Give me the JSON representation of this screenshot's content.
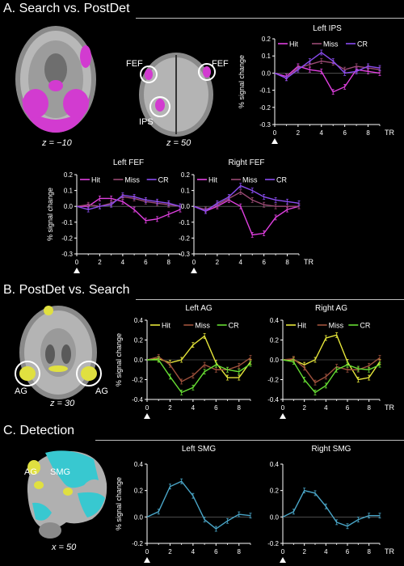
{
  "sections": {
    "A": {
      "title": "A. Search vs. PostDet"
    },
    "B": {
      "title": "B. PostDet vs. Search"
    },
    "C": {
      "title": "C. Detection"
    }
  },
  "brain_labels": {
    "a1_z": "z = −10",
    "a2_z": "z = 50",
    "a2_fef_left": "FEF",
    "a2_fef_right": "FEF",
    "a2_ips": "IPS",
    "b_z": "z = 30",
    "b_ag_left": "AG",
    "b_ag_right": "AG",
    "c_x": "x = 50",
    "c_ag": "AG",
    "c_smg": "SMG"
  },
  "colors": {
    "hit_a": "#e040e0",
    "miss_a": "#9a4a74",
    "cr_a": "#8a4cf0",
    "hit_b": "#e6e63a",
    "miss_b": "#a0523d",
    "cr_b": "#66dd33",
    "det": "#4aa6c8",
    "brain_pink": "#d23bd0",
    "brain_yellow": "#e0e040",
    "brain_cyan": "#38c8d0"
  },
  "chart_data": [
    {
      "id": "left_ips",
      "type": "line",
      "title": "Left IPS",
      "ylabel": "% signal change",
      "xlabel": "TR",
      "onset": "Stimulus onset",
      "x": [
        0,
        1,
        2,
        3,
        4,
        5,
        6,
        7,
        8,
        9
      ],
      "ylim": [
        -0.3,
        0.2
      ],
      "yticks": [
        -0.3,
        -0.2,
        -0.1,
        0,
        0.1,
        0.2
      ],
      "ytick_labels": [
        "-0.3",
        "-0.2",
        "-0.1",
        "0.0",
        "0.1",
        "0.2"
      ],
      "xticks": [
        0,
        2,
        4,
        6,
        8
      ],
      "xtick_labels": [
        "0",
        "2",
        "4",
        "6",
        "8"
      ],
      "series": [
        {
          "name": "Hit",
          "color": "#e040e0",
          "values": [
            0,
            -0.02,
            0.04,
            0.02,
            0.01,
            -0.11,
            -0.08,
            0.02,
            0.01,
            0.0
          ]
        },
        {
          "name": "Miss",
          "color": "#9a4a74",
          "values": [
            0,
            -0.03,
            0.03,
            0.05,
            0.07,
            0.06,
            0.02,
            0.04,
            0.03,
            0.02
          ]
        },
        {
          "name": "CR",
          "color": "#8a4cf0",
          "values": [
            0,
            -0.03,
            0.02,
            0.07,
            0.12,
            0.07,
            0.0,
            0.01,
            0.04,
            0.03
          ]
        }
      ]
    },
    {
      "id": "left_fef",
      "type": "line",
      "title": "Left FEF",
      "ylabel": "% signal change",
      "xlabel": "",
      "onset": "Stimulus onset",
      "x": [
        0,
        1,
        2,
        3,
        4,
        5,
        6,
        7,
        8,
        9
      ],
      "ylim": [
        -0.3,
        0.2
      ],
      "yticks": [
        -0.3,
        -0.2,
        -0.1,
        0,
        0.1,
        0.2
      ],
      "ytick_labels": [
        "-0.3",
        "-0.2",
        "-0.1",
        "0.0",
        "0.1",
        "0.2"
      ],
      "xticks": [
        0,
        2,
        4,
        6,
        8
      ],
      "xtick_labels": [
        "0",
        "2",
        "4",
        "6",
        "8"
      ],
      "series": [
        {
          "name": "Hit",
          "color": "#e040e0",
          "values": [
            0,
            0.0,
            0.05,
            0.05,
            0.03,
            -0.02,
            -0.09,
            -0.08,
            -0.05,
            -0.02
          ]
        },
        {
          "name": "Miss",
          "color": "#9a4a74",
          "values": [
            0,
            0.01,
            0.0,
            0.02,
            0.06,
            0.05,
            0.03,
            0.02,
            0.01,
            0.0
          ]
        },
        {
          "name": "CR",
          "color": "#8a4cf0",
          "values": [
            0,
            -0.02,
            0.0,
            0.01,
            0.07,
            0.06,
            0.04,
            0.03,
            0.02,
            0.0
          ]
        }
      ]
    },
    {
      "id": "right_fef",
      "type": "line",
      "title": "Right FEF",
      "ylabel": "",
      "xlabel": "TR",
      "onset": "Stimulus onset",
      "x": [
        0,
        1,
        2,
        3,
        4,
        5,
        6,
        7,
        8,
        9
      ],
      "ylim": [
        -0.3,
        0.2
      ],
      "yticks": [
        -0.3,
        -0.2,
        -0.1,
        0,
        0.1,
        0.2
      ],
      "ytick_labels": [
        "-0.3",
        "-0.2",
        "-0.1",
        "0.0",
        "0.1",
        "0.2"
      ],
      "xticks": [
        0,
        2,
        4,
        6,
        8
      ],
      "xtick_labels": [
        "0",
        "2",
        "4",
        "6",
        "8"
      ],
      "series": [
        {
          "name": "Hit",
          "color": "#e040e0",
          "values": [
            0,
            -0.03,
            0.0,
            0.04,
            0.0,
            -0.18,
            -0.17,
            -0.07,
            -0.02,
            0.0
          ]
        },
        {
          "name": "Miss",
          "color": "#9a4a74",
          "values": [
            0,
            -0.02,
            0.01,
            0.05,
            0.09,
            0.04,
            0.01,
            0.0,
            0.0,
            0.0
          ]
        },
        {
          "name": "CR",
          "color": "#8a4cf0",
          "values": [
            0,
            -0.03,
            0.02,
            0.06,
            0.13,
            0.1,
            0.06,
            0.04,
            0.03,
            0.02
          ]
        }
      ]
    },
    {
      "id": "left_ag",
      "type": "line",
      "title": "Left  AG",
      "ylabel": "% signal change",
      "xlabel": "",
      "onset": "Stimulus onset",
      "x": [
        0,
        1,
        2,
        3,
        4,
        5,
        6,
        7,
        8,
        9
      ],
      "ylim": [
        -0.4,
        0.4
      ],
      "yticks": [
        -0.4,
        -0.2,
        0,
        0.2,
        0.4
      ],
      "ytick_labels": [
        "-0.4",
        "-0.2",
        "0.0",
        "0.2",
        "0.4"
      ],
      "xticks": [
        0,
        2,
        4,
        6,
        8
      ],
      "xtick_labels": [
        "0",
        "2",
        "4",
        "6",
        "8"
      ],
      "series": [
        {
          "name": "Hit",
          "color": "#e6e63a",
          "values": [
            0,
            0.01,
            -0.03,
            0.0,
            0.15,
            0.24,
            -0.03,
            -0.18,
            -0.18,
            -0.02
          ]
        },
        {
          "name": "Miss",
          "color": "#a0523d",
          "values": [
            0,
            0.03,
            -0.05,
            -0.22,
            -0.16,
            -0.05,
            -0.1,
            -0.1,
            -0.06,
            0.02
          ]
        },
        {
          "name": "CR",
          "color": "#66dd33",
          "values": [
            0,
            0.0,
            -0.17,
            -0.33,
            -0.28,
            -0.12,
            -0.05,
            -0.1,
            -0.12,
            -0.04
          ]
        }
      ]
    },
    {
      "id": "right_ag",
      "type": "line",
      "title": "Right  AG",
      "ylabel": "",
      "xlabel": "TR",
      "onset": "",
      "x": [
        0,
        1,
        2,
        3,
        4,
        5,
        6,
        7,
        8,
        9
      ],
      "ylim": [
        -0.4,
        0.4
      ],
      "yticks": [
        -0.4,
        -0.2,
        0,
        0.2,
        0.4
      ],
      "ytick_labels": [
        "-0.4",
        "-0.2",
        "0.0",
        "0.2",
        "0.4"
      ],
      "xticks": [
        0,
        2,
        4,
        6,
        8
      ],
      "xtick_labels": [
        "0",
        "2",
        "4",
        "6",
        "8"
      ],
      "series": [
        {
          "name": "Hit",
          "color": "#e6e63a",
          "values": [
            0,
            0.0,
            -0.05,
            0.0,
            0.22,
            0.25,
            -0.02,
            -0.2,
            -0.18,
            -0.02
          ]
        },
        {
          "name": "Miss",
          "color": "#a0523d",
          "values": [
            0,
            0.01,
            -0.08,
            -0.23,
            -0.17,
            -0.07,
            -0.1,
            -0.1,
            -0.06,
            0.02
          ]
        },
        {
          "name": "CR",
          "color": "#66dd33",
          "values": [
            0,
            -0.02,
            -0.2,
            -0.33,
            -0.26,
            -0.1,
            -0.05,
            -0.09,
            -0.1,
            -0.05
          ]
        }
      ]
    },
    {
      "id": "left_smg",
      "type": "line",
      "title": "Left SMG",
      "ylabel": "% signal change",
      "xlabel": "",
      "onset": "Change detection",
      "x": [
        0,
        1,
        2,
        3,
        4,
        5,
        6,
        7,
        8,
        9
      ],
      "ylim": [
        -0.2,
        0.4
      ],
      "yticks": [
        -0.2,
        0,
        0.2,
        0.4
      ],
      "ytick_labels": [
        "-0.2",
        "0.0",
        "0.2",
        "0.4"
      ],
      "xticks": [
        0,
        2,
        4,
        6,
        8
      ],
      "xtick_labels": [
        "0",
        "2",
        "4",
        "6",
        "8"
      ],
      "series": [
        {
          "name": "",
          "color": "#4aa6c8",
          "values": [
            0,
            0.04,
            0.23,
            0.27,
            0.16,
            -0.02,
            -0.09,
            -0.03,
            0.02,
            0.01
          ]
        }
      ]
    },
    {
      "id": "right_smg",
      "type": "line",
      "title": "Right SMG",
      "ylabel": "",
      "xlabel": "TR",
      "onset": "Change detection",
      "x": [
        0,
        1,
        2,
        3,
        4,
        5,
        6,
        7,
        8,
        9
      ],
      "ylim": [
        -0.2,
        0.4
      ],
      "yticks": [
        -0.2,
        0,
        0.2,
        0.4
      ],
      "ytick_labels": [
        "-0.2",
        "0.0",
        "0.2",
        "0.4"
      ],
      "xticks": [
        0,
        2,
        4,
        6,
        8
      ],
      "xtick_labels": [
        "0",
        "2",
        "4",
        "6",
        "8"
      ],
      "series": [
        {
          "name": "",
          "color": "#4aa6c8",
          "values": [
            0,
            0.04,
            0.2,
            0.18,
            0.08,
            -0.04,
            -0.07,
            -0.02,
            0.01,
            0.01
          ]
        }
      ]
    }
  ]
}
